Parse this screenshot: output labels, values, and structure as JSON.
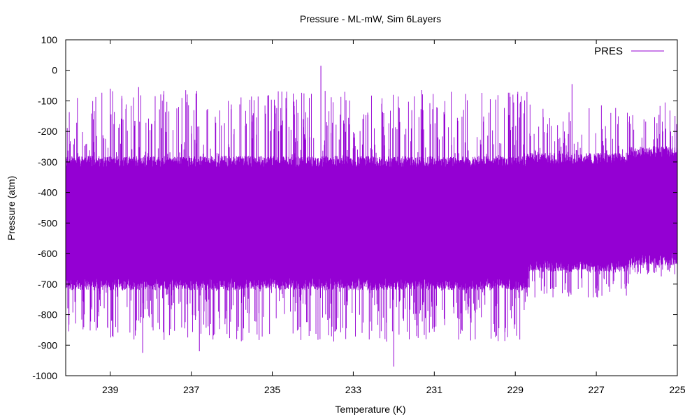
{
  "chart_data": {
    "type": "line",
    "title": "Pressure - ML-mW, Sim 6Layers",
    "xlabel": "Temperature (K)",
    "ylabel": "Pressure (atm)",
    "xlim": [
      240.1,
      225
    ],
    "ylim": [
      -1000,
      100
    ],
    "x_reversed": true,
    "x_ticks": [
      239,
      237,
      235,
      233,
      231,
      229,
      227,
      225
    ],
    "y_ticks": [
      100,
      0,
      -100,
      -200,
      -300,
      -400,
      -500,
      -600,
      -700,
      -800,
      -900,
      -1000
    ],
    "grid": false,
    "legend_position": "top-right",
    "series": [
      {
        "name": "PRES",
        "color": "#9400d3",
        "segments": [
          {
            "x_start": 240.1,
            "x_end": 228.7,
            "core_min": -700,
            "core_max": -300,
            "mean": -490,
            "spike_min": -970,
            "spike_max": 15
          },
          {
            "x_start": 228.7,
            "x_end": 226.2,
            "core_min": -640,
            "core_max": -290,
            "mean": -455,
            "spike_min": -790,
            "spike_max": -45
          },
          {
            "x_start": 226.2,
            "x_end": 225,
            "core_min": -620,
            "core_max": -270,
            "mean": -440,
            "spike_min": -700,
            "spike_max": -50
          }
        ],
        "notable_points": [
          {
            "x": 233.8,
            "y": 15
          },
          {
            "x": 232.0,
            "y": -970
          },
          {
            "x": 238.2,
            "y": -925
          },
          {
            "x": 236.8,
            "y": -920
          },
          {
            "x": 227.6,
            "y": -45
          },
          {
            "x": 239.0,
            "y": -60
          },
          {
            "x": 238.3,
            "y": -55
          }
        ]
      }
    ]
  }
}
